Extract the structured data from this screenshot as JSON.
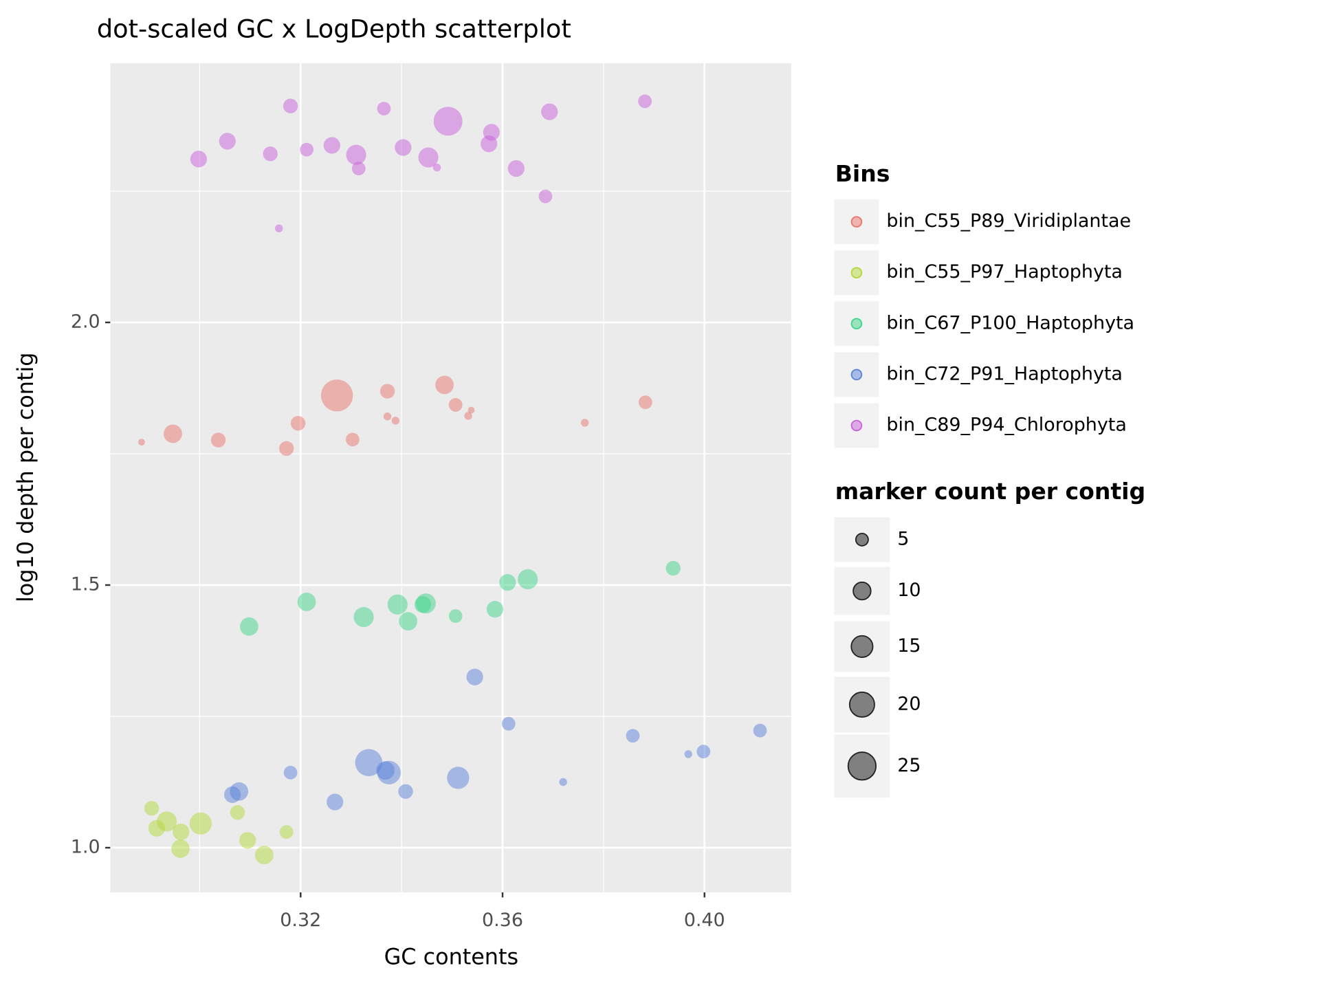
{
  "chart_data": {
    "type": "scatter",
    "title": "dot-scaled GC x LogDepth scatterplot",
    "x_label": "GC contents",
    "y_label": "log10 depth per contig",
    "xlim": [
      0.2823,
      0.4172
    ],
    "ylim": [
      0.915,
      2.4936
    ],
    "xticks": [
      0.32,
      0.36,
      {
        "value": 0.4,
        "label": "0.40"
      }
    ],
    "yticks": [
      {
        "value": 1,
        "label": "1.0"
      },
      1.5,
      {
        "value": 2,
        "label": "2.0"
      }
    ],
    "xminor": [
      0.3,
      0.34,
      0.38
    ],
    "yminor": [
      1.25,
      1.75,
      2.25
    ],
    "grid": true,
    "opacity": 0.5,
    "legend_title": "Bins",
    "legend_position": "right",
    "size_legend": {
      "title": "marker count per contig",
      "values": [
        5,
        10,
        15,
        20,
        25
      ]
    },
    "series": [
      {
        "name": "bin_C55_P89_Viridiplantae",
        "color": "#e8766d",
        "x": [
          0.2885,
          0.2947,
          0.3037,
          0.3172,
          0.3195,
          0.3272,
          0.3303,
          0.3372,
          0.3372,
          0.3388,
          0.3485,
          0.3507,
          0.3532,
          0.3538,
          0.3763,
          0.3883
        ],
        "values": [
          1.772,
          1.788,
          1.776,
          1.76,
          1.808,
          1.861,
          1.777,
          1.869,
          1.821,
          1.813,
          1.881,
          1.843,
          1.822,
          1.833,
          1.809,
          1.848
        ],
        "sizes": [
          1.5,
          11,
          7,
          7,
          7,
          33,
          6,
          7,
          2,
          2,
          11,
          6,
          2,
          1.5,
          2,
          6
        ]
      },
      {
        "name": "bin_C55_P97_Haptophyta",
        "color": "#b4d83a",
        "x": [
          0.2905,
          0.2915,
          0.2935,
          0.2963,
          0.2962,
          0.3002,
          0.3075,
          0.3095,
          0.3128,
          0.3172
        ],
        "values": [
          1.075,
          1.037,
          1.05,
          1.03,
          0.998,
          1.046,
          1.067,
          1.014,
          0.986,
          1.03
        ],
        "sizes": [
          7,
          9,
          13,
          9,
          11,
          16,
          7,
          9,
          11,
          6
        ]
      },
      {
        "name": "bin_C67_P100_Haptophyta",
        "color": "#3fd68a",
        "x": [
          0.3098,
          0.3212,
          0.3325,
          0.3392,
          0.3413,
          0.3448,
          0.3442,
          0.3507,
          0.3585,
          0.361,
          0.365,
          0.3938
        ],
        "values": [
          1.421,
          1.468,
          1.439,
          1.463,
          1.431,
          1.465,
          1.463,
          1.441,
          1.454,
          1.505,
          1.511,
          1.532
        ],
        "sizes": [
          11,
          11,
          13,
          13,
          11,
          13,
          9,
          6,
          9,
          9,
          13,
          7
        ]
      },
      {
        "name": "bin_C72_P91_Haptophyta",
        "color": "#5b84d9",
        "x": [
          0.3065,
          0.3078,
          0.318,
          0.3268,
          0.3335,
          0.3375,
          0.3368,
          0.3408,
          0.3512,
          0.3545,
          0.3612,
          0.372,
          0.3858,
          0.3968,
          0.3998,
          0.411
        ],
        "values": [
          1.101,
          1.107,
          1.143,
          1.087,
          1.162,
          1.143,
          1.147,
          1.107,
          1.133,
          1.325,
          1.236,
          1.125,
          1.213,
          1.178,
          1.183,
          1.223
        ],
        "sizes": [
          9,
          11,
          6,
          9,
          24,
          18,
          11,
          7,
          16,
          9,
          6,
          2,
          6,
          2,
          6,
          6
        ]
      },
      {
        "name": "bin_C89_P94_Chlorophyta",
        "color": "#c862dc",
        "x": [
          0.2998,
          0.3055,
          0.314,
          0.3157,
          0.318,
          0.3212,
          0.3262,
          0.331,
          0.3315,
          0.3365,
          0.3403,
          0.3453,
          0.347,
          0.3492,
          0.3578,
          0.3573,
          0.3627,
          0.3685,
          0.3693,
          0.3882
        ],
        "values": [
          2.311,
          2.345,
          2.321,
          2.179,
          2.412,
          2.329,
          2.337,
          2.319,
          2.293,
          2.407,
          2.333,
          2.314,
          2.295,
          2.383,
          2.362,
          2.34,
          2.293,
          2.24,
          2.401,
          2.421
        ],
        "sizes": [
          9,
          9,
          7,
          2,
          7,
          6,
          9,
          13,
          6,
          6,
          9,
          13,
          2,
          27,
          9,
          9,
          9,
          6,
          9,
          6
        ]
      }
    ]
  }
}
